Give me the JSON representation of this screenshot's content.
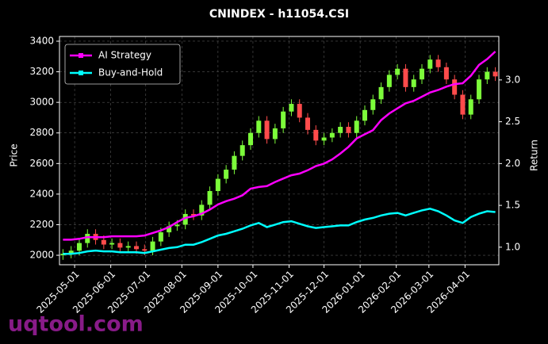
{
  "chart_data": {
    "type": "candlestick",
    "title": "CNINDEX - h11054.CSI",
    "y_label": "Price",
    "y2_label": "Return",
    "watermark": "uqtool.com",
    "x": [
      "2025-04-21",
      "2025-04-28",
      "2025-05-05",
      "2025-05-12",
      "2025-05-19",
      "2025-05-26",
      "2025-06-02",
      "2025-06-09",
      "2025-06-16",
      "2025-06-23",
      "2025-06-30",
      "2025-07-07",
      "2025-07-14",
      "2025-07-21",
      "2025-07-28",
      "2025-08-04",
      "2025-08-11",
      "2025-08-18",
      "2025-08-25",
      "2025-09-01",
      "2025-09-08",
      "2025-09-15",
      "2025-09-22",
      "2025-09-29",
      "2025-10-06",
      "2025-10-13",
      "2025-10-20",
      "2025-10-27",
      "2025-11-03",
      "2025-11-10",
      "2025-11-17",
      "2025-11-24",
      "2025-12-01",
      "2025-12-08",
      "2025-12-15",
      "2025-12-22",
      "2025-12-29",
      "2026-01-05",
      "2026-01-12",
      "2026-01-19",
      "2026-01-26",
      "2026-02-02",
      "2026-02-09",
      "2026-02-16",
      "2026-02-23",
      "2026-03-02",
      "2026-03-09",
      "2026-03-16",
      "2026-03-23",
      "2026-03-30",
      "2026-04-06",
      "2026-04-13",
      "2026-04-20",
      "2026-04-27"
    ],
    "open": [
      2000,
      2010,
      2030,
      2080,
      2140,
      2100,
      2070,
      2080,
      2050,
      2060,
      2040,
      2030,
      2090,
      2150,
      2190,
      2200,
      2270,
      2260,
      2330,
      2420,
      2500,
      2560,
      2650,
      2720,
      2800,
      2880,
      2760,
      2830,
      2940,
      2990,
      2900,
      2820,
      2750,
      2770,
      2800,
      2840,
      2800,
      2880,
      2950,
      3020,
      3100,
      3180,
      3220,
      3100,
      3150,
      3220,
      3280,
      3230,
      3150,
      3050,
      2920,
      3020,
      3150,
      3200
    ],
    "high": [
      2040,
      2060,
      2110,
      2170,
      2170,
      2130,
      2110,
      2110,
      2090,
      2090,
      2070,
      2120,
      2180,
      2220,
      2230,
      2300,
      2300,
      2360,
      2450,
      2530,
      2590,
      2680,
      2750,
      2830,
      2910,
      2910,
      2860,
      2970,
      3020,
      3020,
      2930,
      2850,
      2800,
      2830,
      2870,
      2870,
      2910,
      2980,
      3050,
      3130,
      3210,
      3250,
      3250,
      3180,
      3250,
      3310,
      3310,
      3260,
      3180,
      3080,
      3050,
      3180,
      3230,
      3230
    ],
    "low": [
      1970,
      1980,
      2000,
      2050,
      2070,
      2040,
      2040,
      2020,
      2020,
      2010,
      2000,
      2000,
      2060,
      2120,
      2160,
      2170,
      2230,
      2230,
      2300,
      2390,
      2470,
      2530,
      2620,
      2690,
      2770,
      2730,
      2730,
      2800,
      2910,
      2870,
      2790,
      2720,
      2720,
      2740,
      2770,
      2770,
      2770,
      2850,
      2920,
      2990,
      3070,
      3150,
      3070,
      3070,
      3120,
      3190,
      3200,
      3120,
      3020,
      2890,
      2890,
      2990,
      3120,
      3140
    ],
    "close": [
      2010,
      2030,
      2080,
      2140,
      2100,
      2070,
      2080,
      2050,
      2060,
      2040,
      2030,
      2090,
      2150,
      2190,
      2200,
      2270,
      2260,
      2330,
      2420,
      2500,
      2560,
      2650,
      2720,
      2800,
      2880,
      2760,
      2830,
      2940,
      2990,
      2900,
      2820,
      2750,
      2770,
      2800,
      2840,
      2800,
      2880,
      2950,
      3020,
      3100,
      3180,
      3220,
      3100,
      3150,
      3220,
      3280,
      3230,
      3150,
      3050,
      2920,
      3020,
      3150,
      3200,
      3170
    ],
    "up_color": "#7cfc3a",
    "down_color": "#ff4b4b",
    "series": [
      {
        "name": "AI Strategy",
        "color": "#ff00ff",
        "axis": "y2",
        "values": [
          1.09,
          1.09,
          1.1,
          1.12,
          1.12,
          1.12,
          1.13,
          1.13,
          1.13,
          1.13,
          1.14,
          1.17,
          1.2,
          1.24,
          1.3,
          1.35,
          1.37,
          1.4,
          1.45,
          1.51,
          1.55,
          1.58,
          1.62,
          1.7,
          1.72,
          1.73,
          1.78,
          1.82,
          1.86,
          1.88,
          1.92,
          1.97,
          2.0,
          2.05,
          2.12,
          2.2,
          2.3,
          2.35,
          2.4,
          2.52,
          2.6,
          2.66,
          2.72,
          2.75,
          2.8,
          2.85,
          2.88,
          2.92,
          2.95,
          2.96,
          3.05,
          3.18,
          3.25,
          3.34
        ]
      },
      {
        "name": "Buy-and-Hold",
        "color": "#00ffff",
        "axis": "y2",
        "values": [
          0.92,
          0.92,
          0.93,
          0.95,
          0.96,
          0.95,
          0.95,
          0.94,
          0.94,
          0.94,
          0.93,
          0.95,
          0.97,
          0.99,
          1.0,
          1.03,
          1.03,
          1.06,
          1.1,
          1.14,
          1.16,
          1.19,
          1.22,
          1.26,
          1.29,
          1.24,
          1.27,
          1.3,
          1.31,
          1.28,
          1.25,
          1.23,
          1.24,
          1.25,
          1.26,
          1.26,
          1.3,
          1.33,
          1.35,
          1.38,
          1.4,
          1.41,
          1.38,
          1.41,
          1.44,
          1.46,
          1.43,
          1.38,
          1.32,
          1.29,
          1.36,
          1.4,
          1.43,
          1.42
        ]
      }
    ],
    "xlim": [
      "2025-04-18",
      "2026-04-30"
    ],
    "xticks": [
      "2025-05-01",
      "2025-06-01",
      "2025-07-01",
      "2025-08-01",
      "2025-09-01",
      "2025-10-01",
      "2025-11-01",
      "2025-12-01",
      "2026-01-01",
      "2026-02-01",
      "2026-03-01",
      "2026-04-01"
    ],
    "ylim": [
      1938,
      3431
    ],
    "yticks": [
      2000,
      2200,
      2400,
      2600,
      2800,
      3000,
      3200,
      3400
    ],
    "y2lim": [
      0.79,
      3.52
    ],
    "y2ticks": [
      {
        "value": 1,
        "label": "1.0"
      },
      1.5,
      {
        "value": 2,
        "label": "2.0"
      },
      2.5,
      {
        "value": 3,
        "label": "3.0"
      }
    ],
    "grid": true,
    "legend": "upper left"
  }
}
